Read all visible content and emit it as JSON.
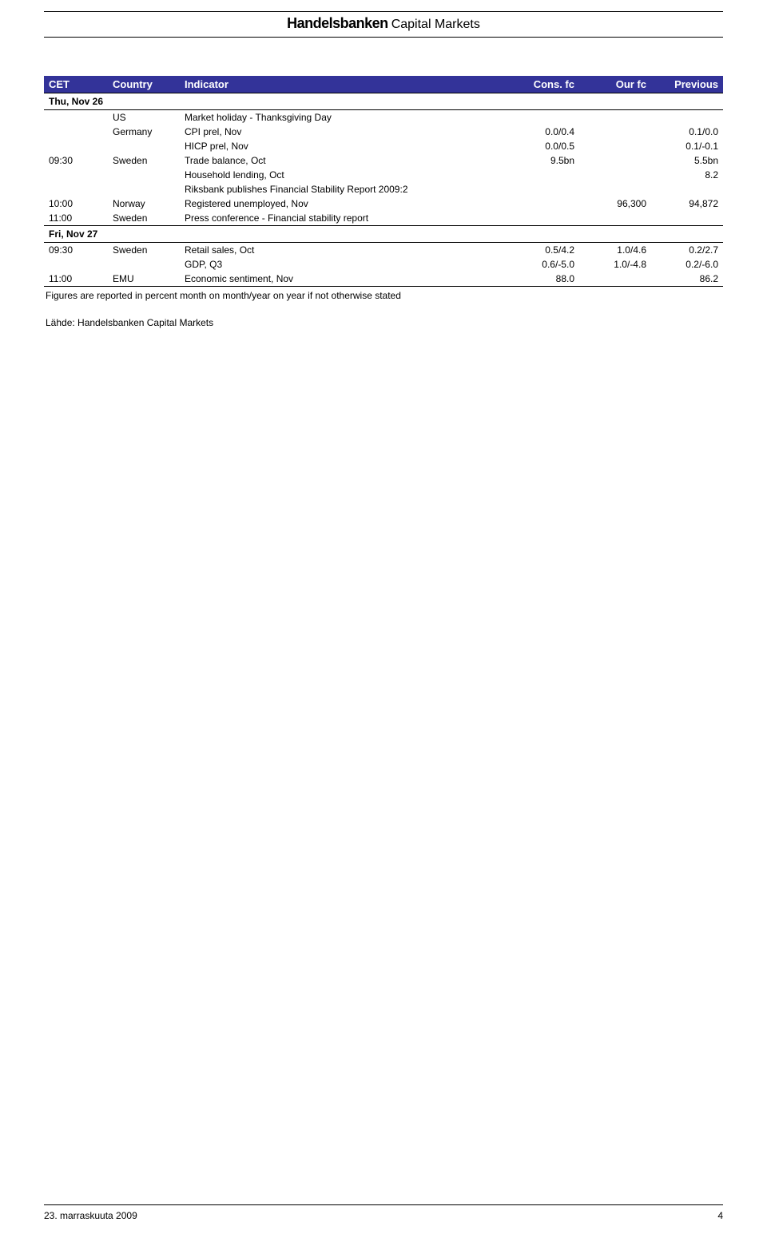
{
  "brand": {
    "name": "Handelsbanken",
    "suffix": "Capital Markets"
  },
  "table": {
    "headers": {
      "cet": "CET",
      "country": "Country",
      "indicator": "Indicator",
      "cons": "Cons. fc",
      "our": "Our fc",
      "prev": "Previous"
    },
    "header_bg": "#333399",
    "header_fg": "#ffffff",
    "sections": [
      {
        "label": "Thu, Nov 26",
        "rows": [
          {
            "cet": "",
            "country": "US",
            "indicator": "Market holiday - Thanksgiving Day",
            "cons": "",
            "our": "",
            "prev": ""
          },
          {
            "cet": "",
            "country": "Germany",
            "indicator": "CPI prel, Nov",
            "cons": "0.0/0.4",
            "our": "",
            "prev": "0.1/0.0"
          },
          {
            "cet": "",
            "country": "",
            "indicator": "HICP prel, Nov",
            "cons": "0.0/0.5",
            "our": "",
            "prev": "0.1/-0.1"
          },
          {
            "cet": "09:30",
            "country": "Sweden",
            "indicator": "Trade balance, Oct",
            "cons": "9.5bn",
            "our": "",
            "prev": "5.5bn"
          },
          {
            "cet": "",
            "country": "",
            "indicator": "Household lending, Oct",
            "cons": "",
            "our": "",
            "prev": "8.2"
          },
          {
            "cet": "",
            "country": "",
            "indicator": "Riksbank publishes Financial Stability Report 2009:2",
            "cons": "",
            "our": "",
            "prev": ""
          },
          {
            "cet": "10:00",
            "country": "Norway",
            "indicator": "Registered unemployed, Nov",
            "cons": "",
            "our": "96,300",
            "prev": "94,872"
          },
          {
            "cet": "11:00",
            "country": "Sweden",
            "indicator": "Press conference - Financial stability report",
            "cons": "",
            "our": "",
            "prev": ""
          }
        ]
      },
      {
        "label": "Fri, Nov 27",
        "rows": [
          {
            "cet": "09:30",
            "country": "Sweden",
            "indicator": "Retail sales, Oct",
            "cons": "0.5/4.2",
            "our": "1.0/4.6",
            "prev": "0.2/2.7"
          },
          {
            "cet": "",
            "country": "",
            "indicator": "GDP, Q3",
            "cons": "0.6/-5.0",
            "our": "1.0/-4.8",
            "prev": "0.2/-6.0"
          },
          {
            "cet": "11:00",
            "country": "EMU",
            "indicator": "Economic sentiment, Nov",
            "cons": "88.0",
            "our": "",
            "prev": "86.2"
          }
        ]
      }
    ]
  },
  "footnote": "Figures are reported in percent month on month/year on year if not otherwise stated",
  "source": "Lähde: Handelsbanken Capital Markets",
  "footer": {
    "date": "23. marraskuuta 2009",
    "page": "4"
  }
}
